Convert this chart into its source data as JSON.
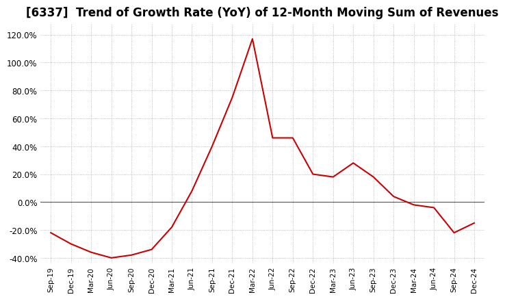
{
  "title": "[6337]  Trend of Growth Rate (YoY) of 12-Month Moving Sum of Revenues",
  "title_fontsize": 12,
  "line_color": "#cc0000",
  "background_color": "#ffffff",
  "grid_color": "#aaaaaa",
  "ylim_min": -0.44,
  "ylim_max": 1.28,
  "dates": [
    "Sep-19",
    "Dec-19",
    "Mar-20",
    "Jun-20",
    "Sep-20",
    "Dec-20",
    "Mar-21",
    "Jun-21",
    "Sep-21",
    "Dec-21",
    "Mar-22",
    "Jun-22",
    "Sep-22",
    "Dec-22",
    "Mar-23",
    "Jun-23",
    "Sep-23",
    "Dec-23",
    "Mar-24",
    "Jun-24",
    "Sep-24",
    "Dec-24"
  ],
  "values": [
    -0.22,
    -0.3,
    -0.36,
    -0.4,
    -0.38,
    -0.34,
    -0.18,
    0.08,
    0.4,
    0.75,
    1.17,
    0.46,
    0.46,
    0.2,
    0.18,
    0.28,
    0.18,
    0.04,
    -0.02,
    -0.04,
    -0.22,
    -0.15
  ],
  "yticks": [
    -0.4,
    -0.2,
    0.0,
    0.2,
    0.4,
    0.6,
    0.8,
    1.0,
    1.2
  ]
}
